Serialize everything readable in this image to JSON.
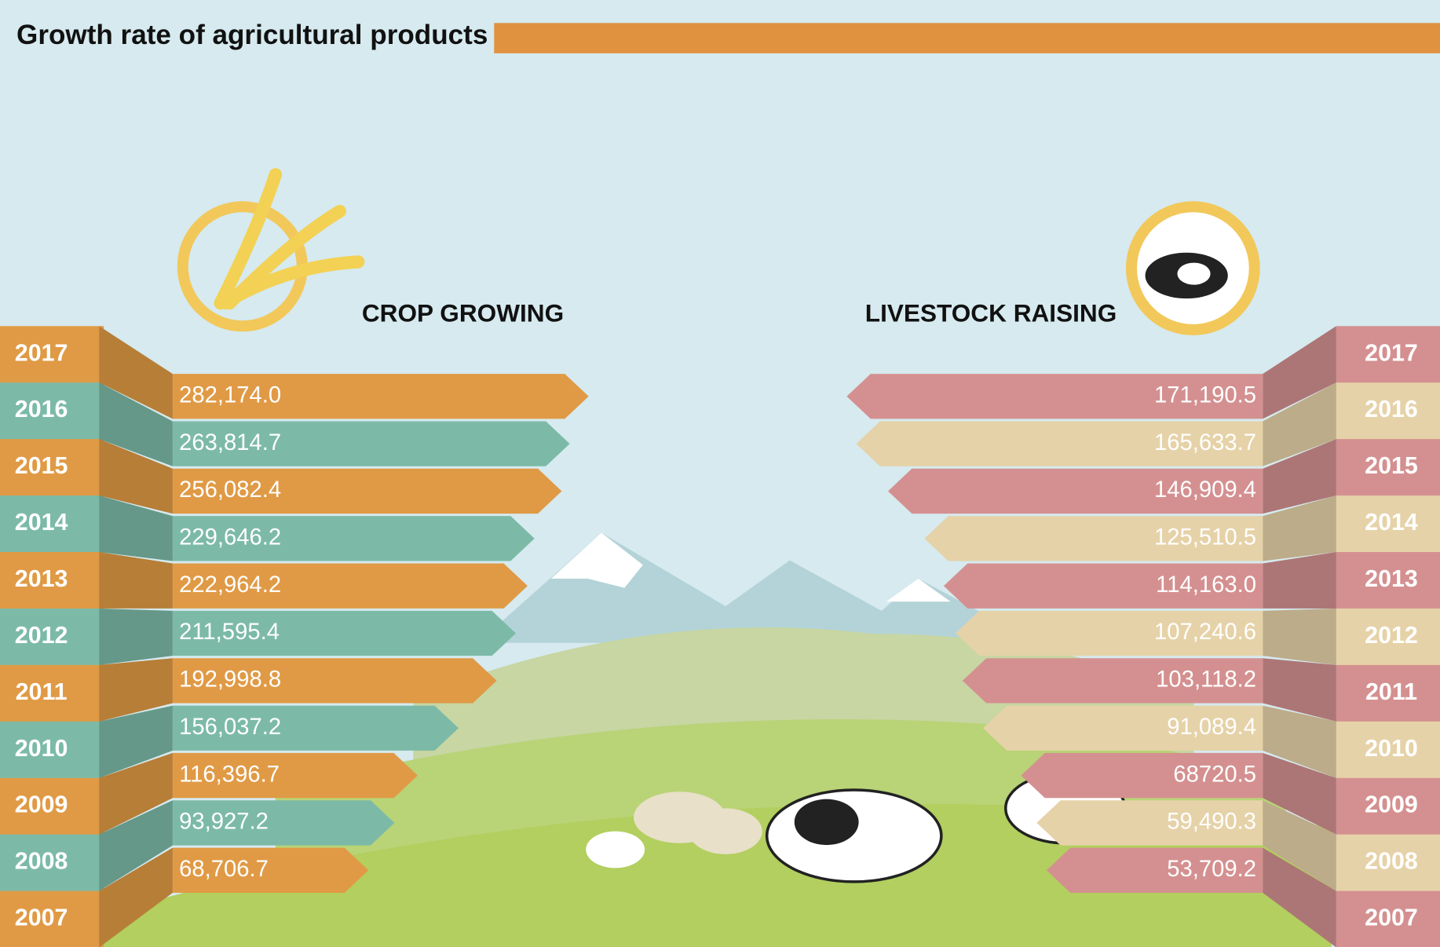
{
  "title": "Growth rate of agricultural products",
  "chart_data": [
    {
      "type": "bar",
      "title": "CROP GROWING",
      "categories": [
        "2017",
        "2016",
        "2015",
        "2014",
        "2013",
        "2012",
        "2011",
        "2010",
        "2009",
        "2008",
        "2007"
      ],
      "values": [
        282174.0,
        263814.7,
        256082.4,
        229646.2,
        222964.2,
        211595.4,
        192998.8,
        156037.2,
        116396.7,
        93927.2,
        68706.7
      ],
      "value_labels": [
        "282,174.0",
        "263,814.7",
        "256,082.4",
        "229,646.2",
        "222,964.2",
        "211,595.4",
        "192,998.8",
        "156,037.2",
        "116,396.7",
        "93,927.2",
        "68,706.7"
      ],
      "colors": [
        "#e09a45",
        "#7cbaa7"
      ]
    },
    {
      "type": "bar",
      "title": "LIVESTOCK RAISING",
      "categories": [
        "2017",
        "2016",
        "2015",
        "2014",
        "2013",
        "2012",
        "2011",
        "2010",
        "2009",
        "2008",
        "2007"
      ],
      "values": [
        171190.5,
        165633.7,
        146909.4,
        125510.5,
        114163.0,
        107240.6,
        103118.2,
        91089.4,
        68720.5,
        59490.3,
        53709.2
      ],
      "value_labels": [
        "171,190.5",
        "165,633.7",
        "146,909.4",
        "125,510.5",
        "114,163.0",
        "107,240.6",
        "103,118.2",
        "91,089.4",
        "68720.5",
        "59,490.3",
        "53,709.2"
      ],
      "colors": [
        "#d49090",
        "#e6d2a8"
      ]
    }
  ]
}
